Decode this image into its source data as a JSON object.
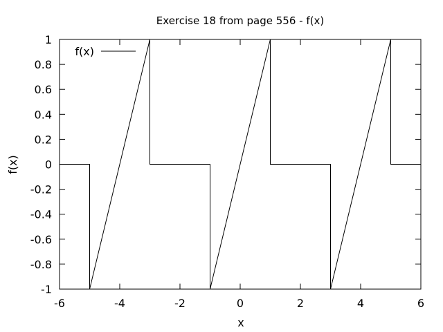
{
  "chart_data": {
    "type": "line",
    "title": "Exercise 18 from page 556 - f(x)",
    "xlabel": "x",
    "ylabel": "f(x)",
    "xlim": [
      -6,
      6
    ],
    "ylim": [
      -1,
      1
    ],
    "grid": false,
    "legend_position": "top-left",
    "xticks": [
      -6,
      -4,
      -2,
      0,
      2,
      4,
      6
    ],
    "xtick_labels": [
      "-6",
      "-4",
      "-2",
      "0",
      "2",
      "4",
      "6"
    ],
    "yticks": [
      -1,
      -0.8,
      -0.6,
      -0.4,
      -0.2,
      0,
      0.2,
      0.4,
      0.6,
      0.8,
      1
    ],
    "ytick_labels": [
      "-1",
      "-0.8",
      "-0.6",
      "-0.4",
      "-0.2",
      "0",
      "0.2",
      "0.4",
      "0.6",
      "0.8",
      "1"
    ],
    "series": [
      {
        "name": "f(x)",
        "color": "#000000",
        "points": [
          [
            -6,
            0
          ],
          [
            -5,
            0
          ],
          [
            -5,
            -1
          ],
          [
            -3,
            1
          ],
          [
            -3,
            0
          ],
          [
            -1,
            0
          ],
          [
            -1,
            -1
          ],
          [
            1,
            1
          ],
          [
            1,
            0
          ],
          [
            3,
            0
          ],
          [
            3,
            -1
          ],
          [
            5,
            1
          ],
          [
            5,
            0
          ],
          [
            6,
            0
          ]
        ]
      }
    ]
  }
}
